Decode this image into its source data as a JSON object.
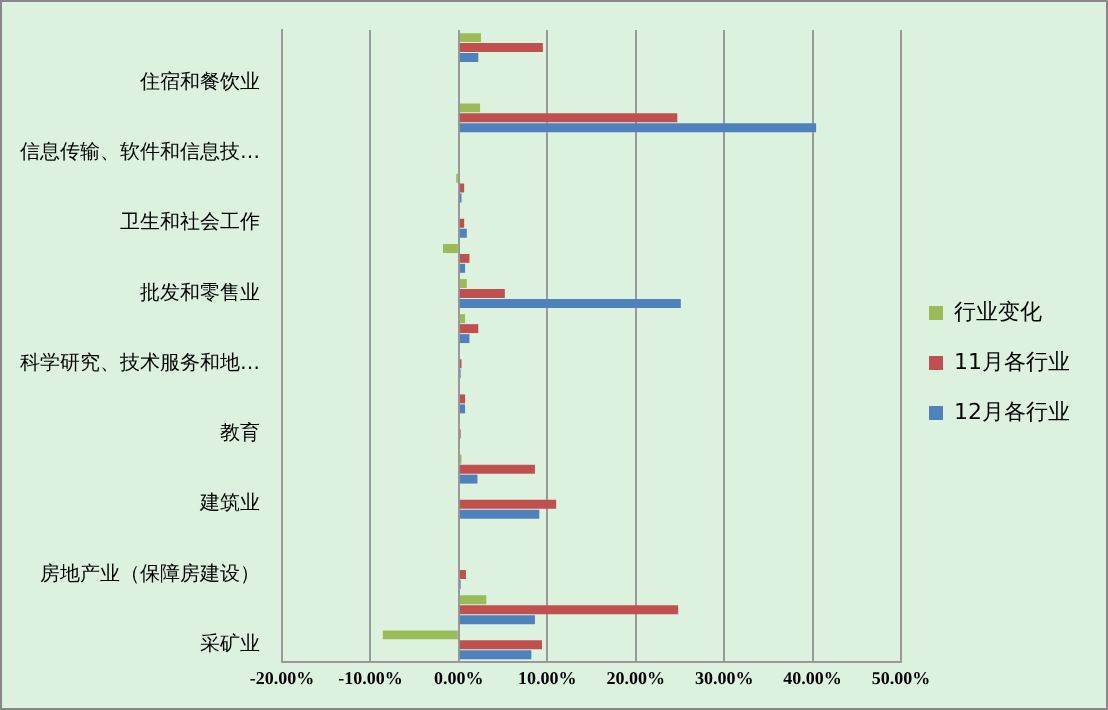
{
  "chart_data": {
    "type": "bar",
    "orientation": "horizontal",
    "categories": [
      null,
      "住宿和餐饮业",
      null,
      "信息传输、软件和信息技…",
      null,
      "卫生和社会工作",
      null,
      "批发和零售业",
      null,
      "科学研究、技术服务和地…",
      null,
      "教育",
      null,
      "建筑业",
      null,
      "房地产业（保障房建设）",
      null,
      "采矿业"
    ],
    "series": [
      {
        "name": "行业变化",
        "color": "#9bbb59",
        "values": [
          2.5,
          0,
          2.4,
          0,
          -0.3,
          0,
          -1.8,
          0.9,
          0.7,
          0,
          0,
          0,
          0.3,
          0,
          0,
          0,
          3.1,
          -8.6
        ]
      },
      {
        "name": "11月各行业",
        "color": "#c0504d",
        "values": [
          9.5,
          0,
          24.7,
          0,
          0.6,
          0.6,
          1.2,
          5.2,
          2.2,
          0.3,
          0.7,
          0.2,
          8.6,
          11.0,
          0,
          0.8,
          24.8,
          9.4
        ]
      },
      {
        "name": "12月各行业",
        "color": "#4f81bd",
        "values": [
          2.2,
          0,
          40.4,
          0,
          0.3,
          0.9,
          0.7,
          25.1,
          1.2,
          0.2,
          0.7,
          0,
          2.1,
          9.1,
          0,
          0.2,
          8.6,
          8.2
        ]
      }
    ],
    "xlim": [
      -20,
      50
    ],
    "xticks": [
      {
        "value": -20,
        "label": "-20.00%"
      },
      {
        "value": -10,
        "label": "-10.00%"
      },
      {
        "value": 0,
        "label": "0.00%"
      },
      {
        "value": 10,
        "label": "10.00%"
      },
      {
        "value": 20,
        "label": "20.00%"
      },
      {
        "value": 30,
        "label": "30.00%"
      },
      {
        "value": 40,
        "label": "40.00%"
      },
      {
        "value": 50,
        "label": "50.00%"
      }
    ],
    "grid": "x",
    "legend": "right"
  }
}
